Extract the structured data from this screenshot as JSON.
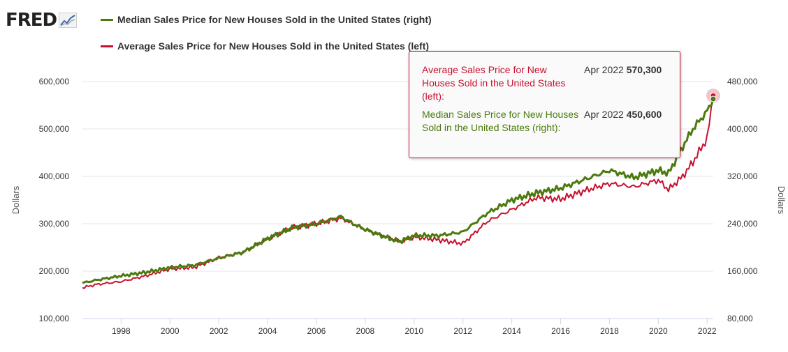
{
  "logo": {
    "text": "FRED",
    "icon": "chart-line-icon"
  },
  "legend": [
    {
      "label": "Median Sales Price for New Houses Sold in the United States (right)",
      "color": "#4b7a0e"
    },
    {
      "label": "Average Sales Price for New Houses Sold in the United States (left)",
      "color": "#c8102e"
    }
  ],
  "tooltip": {
    "rows": [
      {
        "name": "Average Sales Price for New Houses Sold in the United States (left):",
        "date": "Apr 2022",
        "value": "570,300",
        "color": "#c8102e"
      },
      {
        "name": "Median Sales Price for New Houses Sold in the United States (right):",
        "date": "Apr 2022",
        "value": "450,600",
        "color": "#4b7a0e"
      }
    ]
  },
  "chart_data": {
    "type": "line",
    "x_range": [
      "1996-06",
      "2022-04"
    ],
    "x_ticks": [
      "1998",
      "2000",
      "2002",
      "2004",
      "2006",
      "2008",
      "2010",
      "2012",
      "2014",
      "2016",
      "2018",
      "2020",
      "2022"
    ],
    "left_axis": {
      "label": "Dollars",
      "ylim": [
        100000,
        600000
      ],
      "tick_labels": [
        "100,000",
        "200,000",
        "300,000",
        "400,000",
        "500,000",
        "600,000"
      ]
    },
    "right_axis": {
      "label": "Dollars",
      "ylim": [
        80000,
        480000
      ],
      "tick_labels": [
        "80,000",
        "160,000",
        "240,000",
        "320,000",
        "400,000",
        "480,000"
      ]
    },
    "grid": "horizontal",
    "series": [
      {
        "name": "Average Sales Price for New Houses Sold in the United States (left)",
        "axis": "left",
        "color": "#c8102e",
        "x": [
          "1996-06",
          "1997-01",
          "1998-01",
          "1999-01",
          "2000-01",
          "2001-01",
          "2002-01",
          "2003-01",
          "2004-01",
          "2005-01",
          "2006-01",
          "2007-01",
          "2007-06",
          "2008-01",
          "2009-01",
          "2009-06",
          "2010-01",
          "2011-01",
          "2012-01",
          "2013-01",
          "2014-01",
          "2015-01",
          "2016-01",
          "2017-01",
          "2018-01",
          "2019-01",
          "2020-01",
          "2020-06",
          "2021-01",
          "2021-06",
          "2022-01",
          "2022-04"
        ],
        "y": [
          165000,
          172000,
          178000,
          190000,
          205000,
          208000,
          228000,
          240000,
          268000,
          292000,
          300000,
          312000,
          302000,
          288000,
          270000,
          262000,
          272000,
          266000,
          258000,
          305000,
          330000,
          355000,
          352000,
          370000,
          385000,
          378000,
          392000,
          372000,
          400000,
          430000,
          480000,
          570300
        ]
      },
      {
        "name": "Median Sales Price for New Houses Sold in the United States (right)",
        "axis": "right",
        "color": "#4b7a0e",
        "x": [
          "1996-06",
          "1997-01",
          "1998-01",
          "1999-01",
          "2000-01",
          "2001-01",
          "2002-01",
          "2003-01",
          "2004-01",
          "2005-01",
          "2006-01",
          "2007-01",
          "2007-06",
          "2008-01",
          "2009-01",
          "2009-06",
          "2010-01",
          "2011-01",
          "2012-01",
          "2013-01",
          "2014-01",
          "2015-01",
          "2016-01",
          "2017-01",
          "2018-01",
          "2019-01",
          "2020-01",
          "2020-06",
          "2021-01",
          "2021-06",
          "2022-01",
          "2022-04"
        ],
        "y": [
          140000,
          145000,
          152000,
          158000,
          166000,
          170000,
          182000,
          192000,
          215000,
          233000,
          240000,
          252000,
          242000,
          230000,
          215000,
          210000,
          220000,
          220000,
          226000,
          258000,
          280000,
          292000,
          300000,
          315000,
          330000,
          318000,
          330000,
          325000,
          370000,
          400000,
          430000,
          450600
        ]
      }
    ],
    "highlight": {
      "date": "Apr 2022"
    }
  }
}
